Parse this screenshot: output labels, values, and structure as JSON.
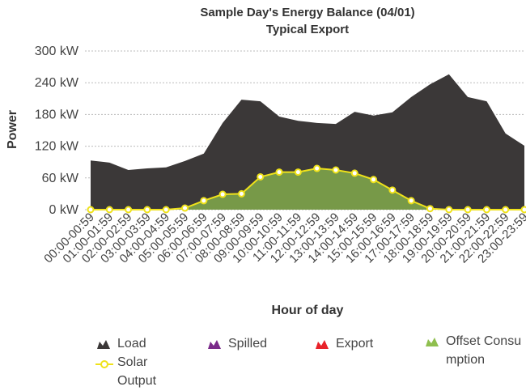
{
  "chart_data": {
    "type": "area",
    "title": "Sample Day's Energy Balance (04/01)",
    "subtitle": "Typical Export",
    "xlabel": "Hour of day",
    "ylabel": "Power",
    "categories": [
      "00:00-00:59",
      "01:00-01:59",
      "02:00-02:59",
      "03:00-03:59",
      "04:00-04:59",
      "05:00-05:59",
      "06:00-06:59",
      "07:00-07:59",
      "08:00-08:59",
      "09:00-09:59",
      "10:00-10:59",
      "11:00-11:59",
      "12:00-12:59",
      "13:00-13:59",
      "14:00-14:59",
      "15:00-15:59",
      "16:00-16:59",
      "17:00-17:59",
      "18:00-18:59",
      "19:00-19:59",
      "20:00-20:59",
      "21:00-21:59",
      "22:00-22:59",
      "23:00-23:59"
    ],
    "ylim": [
      0,
      300
    ],
    "yticks": [
      {
        "value": 0,
        "label": "0 kW"
      },
      {
        "value": 60,
        "label": "60 kW"
      },
      {
        "value": 120,
        "label": "120 kW"
      },
      {
        "value": 180,
        "label": "180 kW"
      },
      {
        "value": 240,
        "label": "240 kW"
      },
      {
        "value": 300,
        "label": "300 kW"
      }
    ],
    "grid": true,
    "series": [
      {
        "name": "Load",
        "color": "#3b3838",
        "kind": "area",
        "values": [
          93,
          89,
          75,
          78,
          80,
          92,
          106,
          164,
          208,
          205,
          176,
          168,
          164,
          162,
          185,
          178,
          184,
          213,
          237,
          256,
          213,
          205,
          144,
          121
        ]
      },
      {
        "name": "Spilled",
        "color": "#7b2a8a",
        "kind": "area",
        "values": [
          0,
          0,
          0,
          0,
          0,
          0,
          0,
          0,
          0,
          0,
          0,
          0,
          0,
          0,
          0,
          0,
          0,
          0,
          0,
          0,
          0,
          0,
          0,
          0
        ]
      },
      {
        "name": "Export",
        "color": "#e8232a",
        "kind": "area",
        "values": [
          0,
          0,
          0,
          0,
          0,
          0,
          0,
          0,
          0,
          0,
          0,
          0,
          0,
          0,
          0,
          0,
          0,
          0,
          0,
          0,
          0,
          0,
          0,
          0
        ]
      },
      {
        "name": "Offset Consumption",
        "color": "#8fbf4f",
        "kind": "area",
        "values": [
          0,
          0,
          0,
          0,
          0,
          3,
          17,
          29,
          30,
          62,
          71,
          71,
          78,
          75,
          69,
          57,
          37,
          17,
          2,
          0,
          0,
          0,
          0,
          0
        ]
      },
      {
        "name": "Solar Output",
        "color": "#efe21a",
        "kind": "line",
        "values": [
          0,
          0,
          0,
          0,
          0,
          3,
          17,
          29,
          30,
          62,
          71,
          71,
          78,
          75,
          69,
          57,
          37,
          17,
          2,
          0,
          0,
          0,
          0,
          0
        ]
      }
    ]
  }
}
